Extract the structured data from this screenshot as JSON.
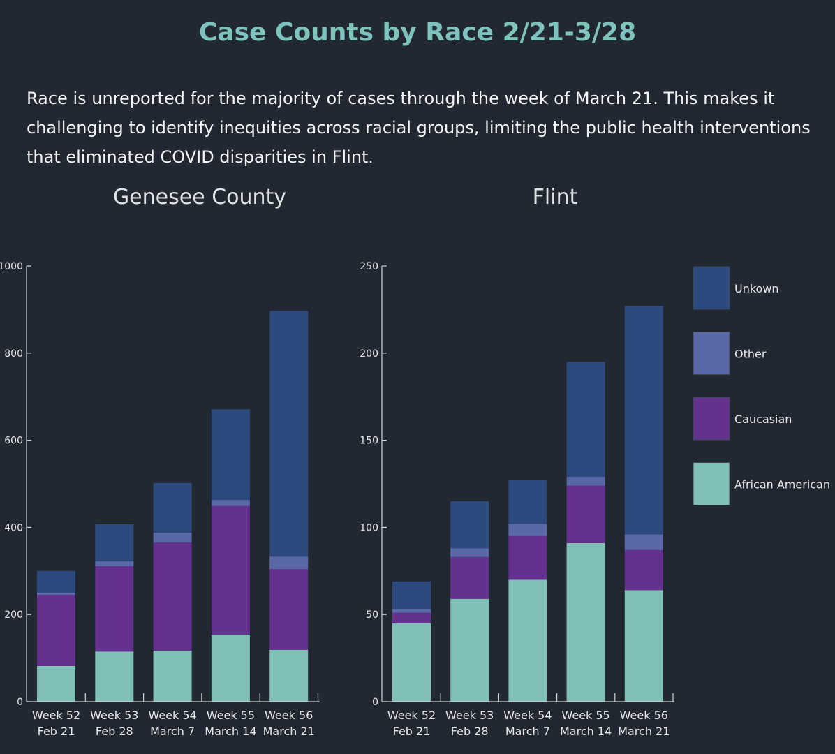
{
  "title": "Case Counts by Race 2/21-3/28",
  "description": "Race is unreported for the majority of cases through the week of March 21. This makes it challenging to identify inequities across racial groups, limiting the public health interventions that eliminated COVID disparities in Flint.",
  "legend": [
    {
      "name": "Unkown",
      "color": "#2d4a7e"
    },
    {
      "name": "Other",
      "color": "#5b68a8"
    },
    {
      "name": "Caucasian",
      "color": "#65318f"
    },
    {
      "name": "African American",
      "color": "#7fbfb5"
    }
  ],
  "chart_data": [
    {
      "type": "bar",
      "stacked": true,
      "title": "Genesee County",
      "categories": [
        [
          "Week 52",
          "Feb 21"
        ],
        [
          "Week 53",
          "Feb 28"
        ],
        [
          "Week 54",
          "March 7"
        ],
        [
          "Week 55",
          "March 14"
        ],
        [
          "Week 56",
          "March 21"
        ]
      ],
      "ylim": [
        0,
        1000
      ],
      "yticks": [
        "0",
        "200",
        "400",
        "600",
        "800",
        "1000"
      ],
      "series": [
        {
          "name": "African American",
          "values": [
            82,
            115,
            117,
            154,
            119
          ]
        },
        {
          "name": "Caucasian",
          "values": [
            163,
            196,
            248,
            295,
            185
          ]
        },
        {
          "name": "Other",
          "values": [
            5,
            11,
            23,
            14,
            29
          ]
        },
        {
          "name": "Unkown",
          "values": [
            50,
            85,
            114,
            208,
            564
          ]
        }
      ]
    },
    {
      "type": "bar",
      "stacked": true,
      "title": "Flint",
      "categories": [
        [
          "Week 52",
          "Feb 21"
        ],
        [
          "Week 53",
          "Feb 28"
        ],
        [
          "Week 54",
          "March 7"
        ],
        [
          "Week 55",
          "March 14"
        ],
        [
          "Week 56",
          "March 21"
        ]
      ],
      "ylim": [
        0,
        250
      ],
      "yticks": [
        "0",
        "50",
        "100",
        "150",
        "200",
        "250"
      ],
      "series": [
        {
          "name": "African American",
          "values": [
            45,
            59,
            70,
            91,
            64
          ]
        },
        {
          "name": "Caucasian",
          "values": [
            6,
            24,
            25,
            33,
            23
          ]
        },
        {
          "name": "Other",
          "values": [
            2,
            5,
            7,
            5,
            9
          ]
        },
        {
          "name": "Unkown",
          "values": [
            16,
            27,
            25,
            66,
            131
          ]
        }
      ]
    }
  ]
}
